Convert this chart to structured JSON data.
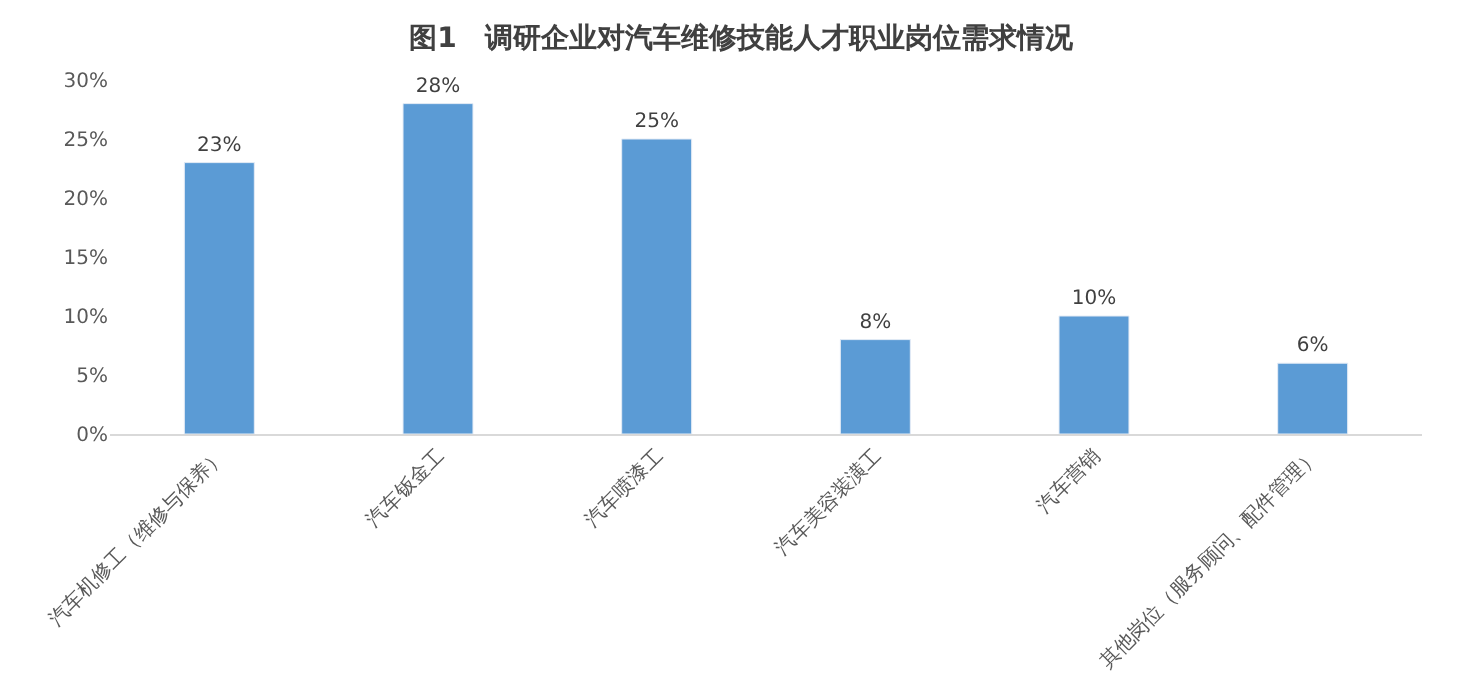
{
  "chart_data": {
    "type": "bar",
    "title": "图1　调研企业对汽车维修技能人才职业岗位需求情况",
    "categories": [
      "汽车机修工（维修与保养）",
      "汽车钣金工",
      "汽车喷漆工",
      "汽车美容装潢工",
      "汽车营销",
      "其他岗位（服务顾问、配件管理）"
    ],
    "values": [
      23,
      28,
      25,
      8,
      10,
      6
    ],
    "value_labels": [
      "23%",
      "28%",
      "25%",
      "8%",
      "10%",
      "6%"
    ],
    "color": "#5b9bd5",
    "ylim": [
      0,
      30
    ],
    "yticks": [
      {
        "value": 0,
        "label": "0%"
      },
      {
        "value": 5,
        "label": "5%"
      },
      {
        "value": 10,
        "label": "10%"
      },
      {
        "value": 15,
        "label": "15%"
      },
      {
        "value": 20,
        "label": "20%"
      },
      {
        "value": 25,
        "label": "25%"
      },
      {
        "value": 30,
        "label": "30%"
      }
    ],
    "legend": false
  }
}
